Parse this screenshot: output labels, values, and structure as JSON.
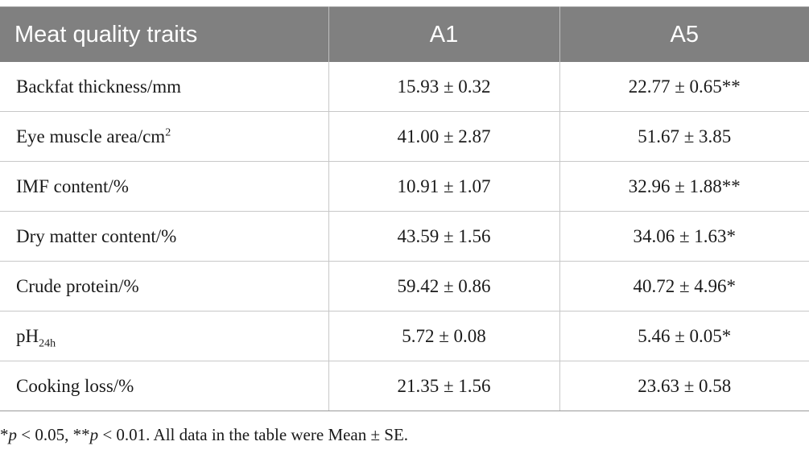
{
  "table": {
    "headers": [
      "Meat quality traits",
      "A1",
      "A5"
    ],
    "rows": [
      {
        "trait": "Backfat thickness/mm",
        "a1": "15.93 ± 0.32",
        "a5": "22.77 ± 0.65**"
      },
      {
        "trait": "Eye muscle area/cm",
        "trait_sup": "2",
        "a1": "41.00 ± 2.87",
        "a5": "51.67 ± 3.85"
      },
      {
        "trait": "IMF content/%",
        "a1": "10.91 ± 1.07",
        "a5": "32.96 ± 1.88**"
      },
      {
        "trait": "Dry matter content/%",
        "a1": "43.59 ± 1.56",
        "a5": "34.06 ± 1.63*"
      },
      {
        "trait": "Crude protein/%",
        "a1": "59.42 ± 0.86",
        "a5": "40.72 ± 4.96*"
      },
      {
        "trait": "pH",
        "trait_sub": "24h",
        "a1": "5.72 ± 0.08",
        "a5": "5.46 ± 0.05*"
      },
      {
        "trait": "Cooking loss/%",
        "a1": "21.35 ± 1.56",
        "a5": "23.63 ± 0.58"
      }
    ]
  },
  "footnote": {
    "star1": "*",
    "p1": "p",
    "t1": " < 0.05, **",
    "p2": "p",
    "t2": " < 0.01. All data in the table were Mean ± SE."
  }
}
